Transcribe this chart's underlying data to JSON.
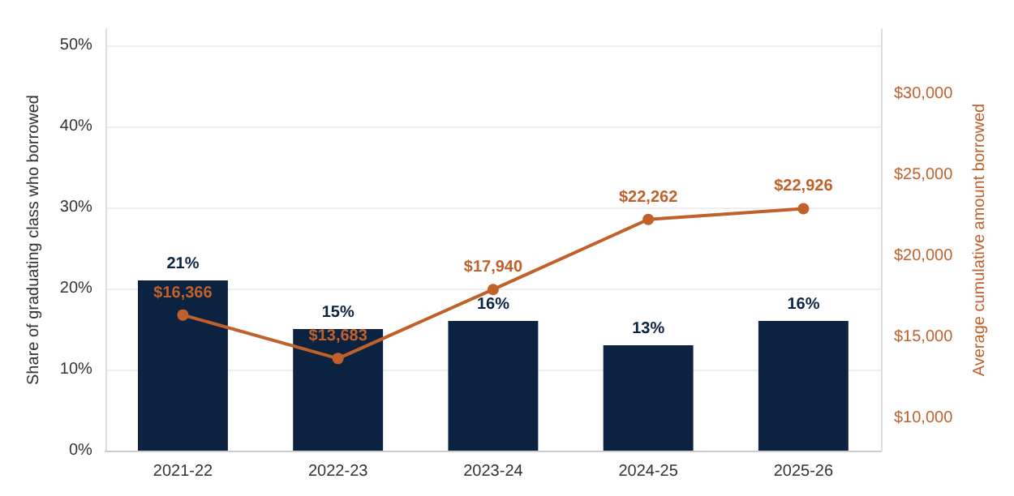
{
  "chart_data": {
    "type": "bar",
    "categories": [
      "2021-22",
      "2022-23",
      "2023-24",
      "2024-25",
      "2025-26"
    ],
    "ylabel": "Share of graduating class who borrowed",
    "y2label": "Average cumulative amount borrowed",
    "series": [
      {
        "color": "#0b2341",
        "values": [
          21,
          15,
          16,
          13,
          16
        ],
        "value_labels": [
          "21%",
          "15%",
          "16%",
          "13%",
          "16%"
        ]
      },
      {
        "type": "line",
        "axis": "y2",
        "color": "#c0602a",
        "values": [
          16366,
          13683,
          17940,
          22262,
          22926
        ],
        "value_labels": [
          "$16,366",
          "$13,683",
          "$17,940",
          "$22,262",
          "$22,926"
        ]
      }
    ],
    "ylim": [
      0,
      52
    ],
    "yticks": [
      {
        "value": 0,
        "label": "0%"
      },
      {
        "value": 10,
        "label": "10%"
      },
      {
        "value": 20,
        "label": "20%"
      },
      {
        "value": 30,
        "label": "30%"
      },
      {
        "value": 40,
        "label": "40%"
      },
      {
        "value": 50,
        "label": "50%"
      }
    ],
    "y2lim": [
      8000,
      34000
    ],
    "y2ticks": [
      {
        "value": 10000,
        "label": "$10,000"
      },
      {
        "value": 15000,
        "label": "$15,000"
      },
      {
        "value": 20000,
        "label": "$20,000"
      },
      {
        "value": 25000,
        "label": "$25,000"
      },
      {
        "value": 30000,
        "label": "$30,000"
      }
    ],
    "grid": "y",
    "marker": "circle",
    "line_style": "solid"
  }
}
